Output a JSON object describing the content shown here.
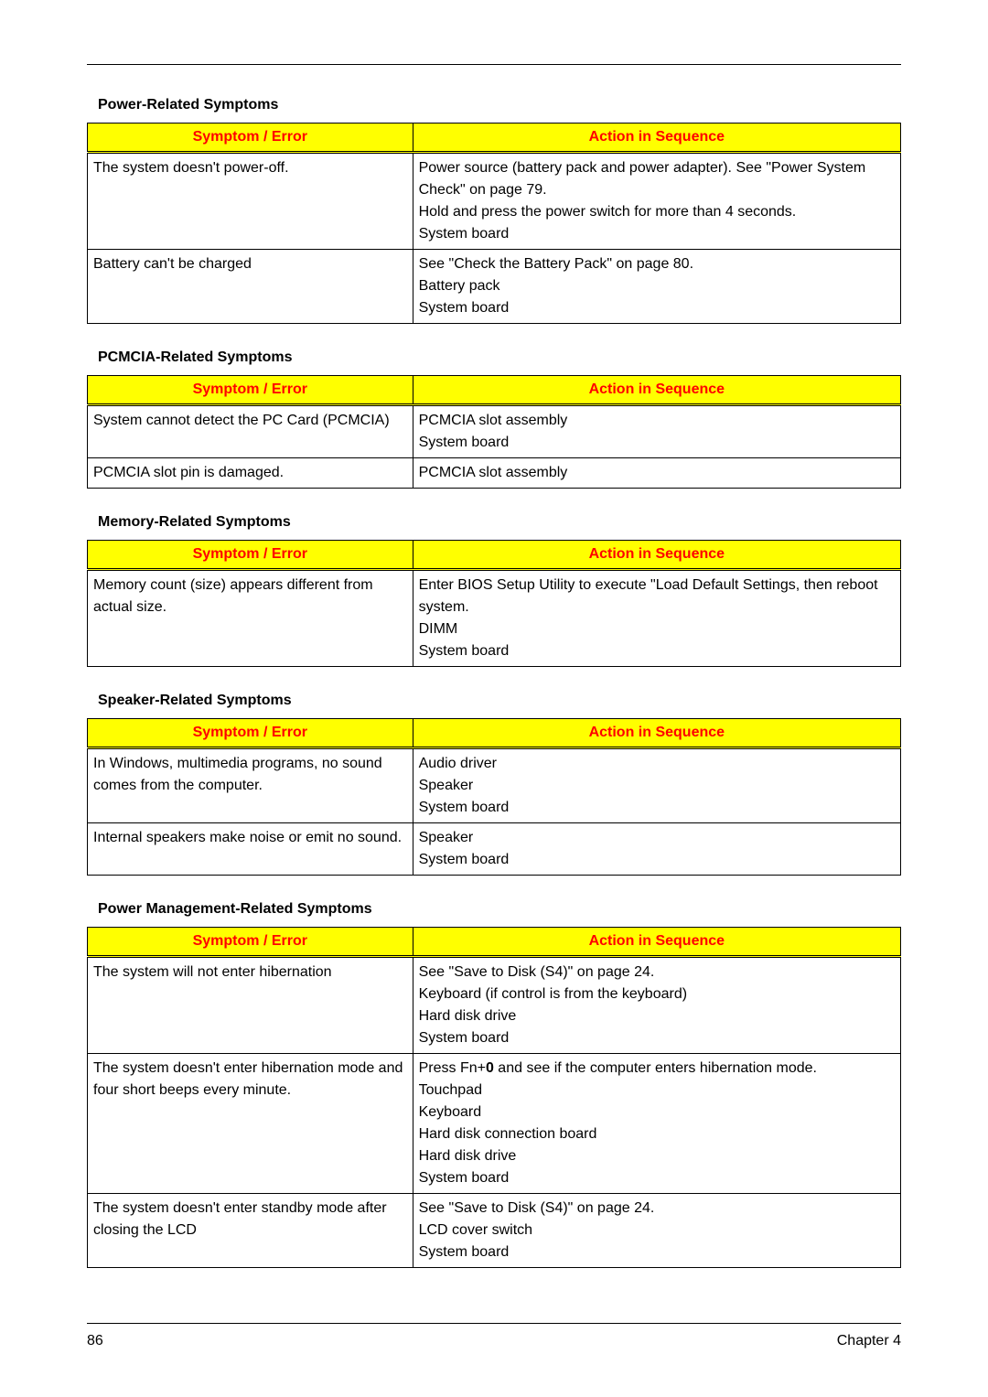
{
  "page": {
    "number": "86",
    "chapter": "Chapter 4"
  },
  "header_colors": {
    "bg": "#ffff00",
    "fg": "#ff0000"
  },
  "headers": {
    "symptom": "Symptom / Error",
    "action": "Action in Sequence"
  },
  "sections": {
    "power": {
      "title": "Power-Related Symptoms",
      "rows": [
        {
          "symptom": "The system doesn't power-off.",
          "actions": [
            "Power source (battery pack and power adapter). See \"Power System Check\" on page 79.",
            "Hold and press the power switch for more than 4 seconds.",
            "System board"
          ]
        },
        {
          "symptom": "Battery can't be charged",
          "actions": [
            "See \"Check the Battery Pack\" on page 80.",
            "Battery pack",
            "System board"
          ]
        }
      ]
    },
    "pcmcia": {
      "title": "PCMCIA-Related Symptoms",
      "rows": [
        {
          "symptom": "System cannot detect the PC Card (PCMCIA)",
          "actions": [
            "PCMCIA slot assembly",
            "System board"
          ]
        },
        {
          "symptom": "PCMCIA slot pin is damaged.",
          "actions": [
            "PCMCIA slot assembly"
          ]
        }
      ]
    },
    "memory": {
      "title": "Memory-Related Symptoms",
      "rows": [
        {
          "symptom": "Memory count (size) appears different from actual size.",
          "actions": [
            "Enter BIOS Setup Utility to execute \"Load Default Settings, then reboot system.",
            "DIMM",
            "System board"
          ]
        }
      ]
    },
    "speaker": {
      "title": "Speaker-Related Symptoms",
      "rows": [
        {
          "symptom": "In Windows, multimedia programs, no sound comes from the computer.",
          "actions": [
            "Audio driver",
            "Speaker",
            "System board"
          ]
        },
        {
          "symptom": "Internal speakers make noise or emit no sound.",
          "actions": [
            "Speaker",
            "System board"
          ]
        }
      ]
    },
    "pm": {
      "title": "Power Management-Related Symptoms",
      "rows": [
        {
          "symptom": "The system will not enter hibernation",
          "actions": [
            "See \"Save to Disk (S4)\" on page 24.",
            "Keyboard (if control is from the keyboard)",
            "Hard disk drive",
            "System board"
          ]
        },
        {
          "symptom": "The system doesn't enter hibernation mode and four short beeps every minute.",
          "actions_prefix": "Press Fn+",
          "actions_key": "0",
          "actions_suffix": " and see if the computer enters hibernation mode.",
          "actions_rest": [
            "Touchpad",
            "Keyboard",
            "Hard disk connection board",
            "Hard disk drive",
            "System board"
          ]
        },
        {
          "symptom": "The system doesn't enter standby mode after closing the LCD",
          "actions": [
            "See \"Save to Disk (S4)\" on page 24.",
            "LCD cover switch",
            "System board"
          ]
        }
      ]
    }
  }
}
